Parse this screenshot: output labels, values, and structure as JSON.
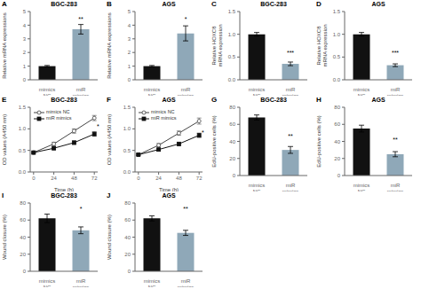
{
  "chart_data": [
    {
      "type": "bar",
      "label": "A",
      "title": "BGC-283",
      "categories": [
        "mimics NC",
        "miR mimics"
      ],
      "values": [
        1.0,
        3.7
      ],
      "errors": [
        0.05,
        0.35
      ],
      "colors": [
        "#111111",
        "#8fa8b8"
      ],
      "ylabel": "Relative mRNA expressions",
      "ylim": [
        0,
        5
      ],
      "yticks": [
        0,
        1,
        2,
        3,
        4,
        5
      ],
      "annotations": [
        {
          "text": "**",
          "x": "miR mimics",
          "y": 4.2
        }
      ]
    },
    {
      "type": "bar",
      "label": "B",
      "title": "AGS",
      "categories": [
        "mimics NC",
        "miR mimics"
      ],
      "values": [
        1.0,
        3.4
      ],
      "errors": [
        0.05,
        0.55
      ],
      "colors": [
        "#111111",
        "#8fa8b8"
      ],
      "ylabel": "Relative mRNA expressions",
      "ylim": [
        0,
        5
      ],
      "yticks": [
        0,
        1,
        2,
        3,
        4,
        5
      ],
      "annotations": [
        {
          "text": "*",
          "x": "miR mimics",
          "y": 4.2
        }
      ]
    },
    {
      "type": "bar",
      "label": "C",
      "title": "BGC-283",
      "categories": [
        "mimics NC",
        "miR mimics"
      ],
      "values": [
        1.0,
        0.35
      ],
      "errors": [
        0.04,
        0.04
      ],
      "colors": [
        "#111111",
        "#8fa8b8"
      ],
      "ylabel": "Relative HOXC8\nmRNA expression",
      "ylim": [
        0.0,
        1.5
      ],
      "yticks": [
        {
          "value": 0.0,
          "label": "0.0"
        },
        0.5,
        {
          "value": 1.0,
          "label": "1.0"
        },
        1.5
      ],
      "annotations": [
        {
          "text": "***",
          "x": "miR mimics",
          "y": 0.52
        }
      ]
    },
    {
      "type": "bar",
      "label": "D",
      "title": "AGS",
      "categories": [
        "mimics NC",
        "miR mimics"
      ],
      "values": [
        1.0,
        0.32
      ],
      "errors": [
        0.04,
        0.03
      ],
      "colors": [
        "#111111",
        "#8fa8b8"
      ],
      "ylabel": "Relative HOXC8\nmRNA expression",
      "ylim": [
        0.0,
        1.5
      ],
      "yticks": [
        {
          "value": 0.0,
          "label": "0.0"
        },
        0.5,
        {
          "value": 1.0,
          "label": "1.0"
        },
        1.5
      ],
      "annotations": [
        {
          "text": "***",
          "x": "miR mimics",
          "y": 0.52
        }
      ]
    },
    {
      "type": "line",
      "label": "E",
      "title": "BGC-283",
      "xlabel": "Time (h)",
      "ylabel": "OD values (A450 nm)",
      "x": [
        0,
        24,
        48,
        72
      ],
      "xlim": [
        -4,
        76
      ],
      "xticks": [
        0,
        24,
        48,
        72
      ],
      "ylim": [
        0.0,
        1.5
      ],
      "yticks": [
        {
          "value": 0.0,
          "label": "0.0"
        },
        0.5,
        {
          "value": 1.0,
          "label": "1.0"
        },
        1.5
      ],
      "legend": "upper left",
      "series": [
        {
          "name": "mimics NC",
          "color": "#444444",
          "marker": "open_circle",
          "line_style": "solid",
          "values": [
            0.45,
            0.65,
            0.95,
            1.25
          ],
          "errors": [
            0.02,
            0.04,
            0.05,
            0.06
          ]
        },
        {
          "name": "miR mimics",
          "color": "#111111",
          "marker": "square",
          "line_style": "solid",
          "values": [
            0.45,
            0.55,
            0.68,
            0.88
          ],
          "errors": [
            0.02,
            0.03,
            0.04,
            0.05
          ]
        }
      ],
      "annotations": [
        {
          "text": "*",
          "x": 74,
          "y": 1.06
        }
      ]
    },
    {
      "type": "line",
      "label": "F",
      "title": "AGS",
      "xlabel": "Time (h)",
      "ylabel": "OD values (A450 nm)",
      "x": [
        0,
        24,
        48,
        72
      ],
      "xlim": [
        -4,
        76
      ],
      "xticks": [
        0,
        24,
        48,
        72
      ],
      "ylim": [
        0.0,
        1.5
      ],
      "yticks": [
        {
          "value": 0.0,
          "label": "0.0"
        },
        0.5,
        {
          "value": 1.0,
          "label": "1.0"
        },
        1.5
      ],
      "legend": "upper left",
      "series": [
        {
          "name": "mimics NC",
          "color": "#444444",
          "marker": "open_circle",
          "line_style": "solid",
          "values": [
            0.4,
            0.62,
            0.9,
            1.18
          ],
          "errors": [
            0.02,
            0.04,
            0.05,
            0.07
          ]
        },
        {
          "name": "miR mimics",
          "color": "#111111",
          "marker": "square",
          "line_style": "solid",
          "values": [
            0.4,
            0.52,
            0.65,
            0.85
          ],
          "errors": [
            0.02,
            0.03,
            0.04,
            0.05
          ]
        }
      ],
      "annotations": [
        {
          "text": "*",
          "x": 74,
          "y": 0.92
        }
      ]
    },
    {
      "type": "bar",
      "label": "G",
      "title": "BGC-283",
      "categories": [
        "mimics NC",
        "miR mimics"
      ],
      "values": [
        68,
        30
      ],
      "errors": [
        3,
        4
      ],
      "colors": [
        "#111111",
        "#8fa8b8"
      ],
      "ylabel": "EdU-positive cells (%)",
      "ylim": [
        0,
        80
      ],
      "yticks": [
        0,
        20,
        40,
        60,
        80
      ],
      "annotations": [
        {
          "text": "**",
          "x": "miR mimics",
          "y": 43
        }
      ]
    },
    {
      "type": "bar",
      "label": "H",
      "title": "AGS",
      "categories": [
        "mimics NC",
        "miR mimics"
      ],
      "values": [
        55,
        25
      ],
      "errors": [
        4,
        3
      ],
      "colors": [
        "#111111",
        "#8fa8b8"
      ],
      "ylabel": "EdU-positive cells (%)",
      "ylim": [
        0,
        80
      ],
      "yticks": [
        0,
        20,
        40,
        60,
        80
      ],
      "annotations": [
        {
          "text": "**",
          "x": "miR mimics",
          "y": 38
        }
      ]
    },
    {
      "type": "bar",
      "label": "I",
      "title": "BGC-283",
      "categories": [
        "mimics NC",
        "miR mimics"
      ],
      "values": [
        62,
        48
      ],
      "errors": [
        5,
        4
      ],
      "colors": [
        "#111111",
        "#8fa8b8"
      ],
      "ylabel": "Wound closure (%)",
      "ylim": [
        0,
        80
      ],
      "yticks": [
        0,
        20,
        40,
        60,
        80
      ],
      "annotations": [
        {
          "text": "*",
          "x": "miR mimics",
          "y": 70
        }
      ]
    },
    {
      "type": "bar",
      "label": "J",
      "title": "AGS",
      "categories": [
        "mimics NC",
        "miR mimics"
      ],
      "values": [
        62,
        45
      ],
      "errors": [
        3,
        3
      ],
      "colors": [
        "#111111",
        "#8fa8b8"
      ],
      "ylabel": "Wound closure (%)",
      "ylim": [
        0,
        80
      ],
      "yticks": [
        0,
        20,
        40,
        60,
        80
      ],
      "annotations": [
        {
          "text": "**",
          "x": "miR mimics",
          "y": 70
        }
      ]
    }
  ]
}
